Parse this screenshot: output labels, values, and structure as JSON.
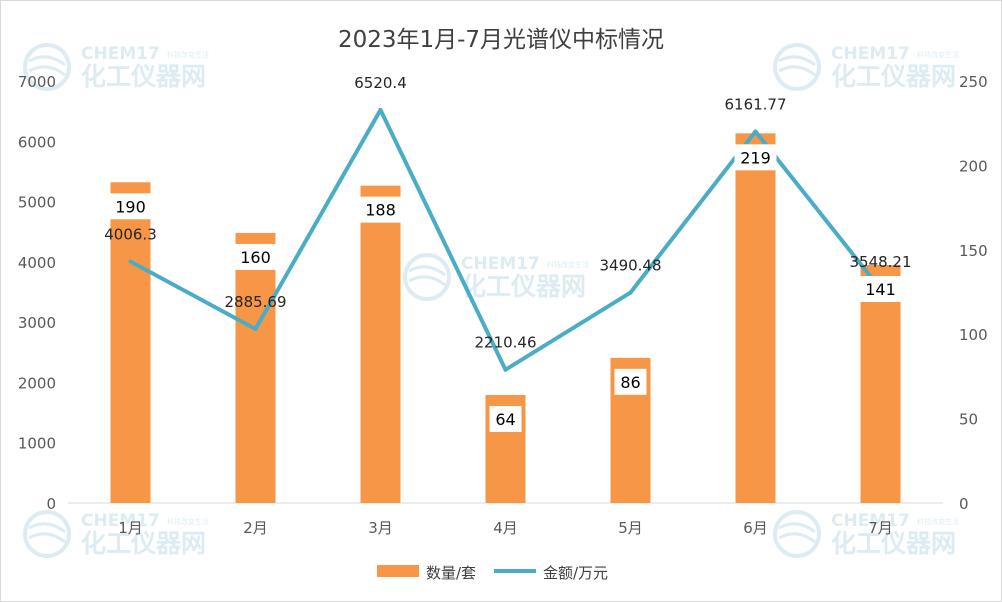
{
  "chart_data": {
    "type": "bar",
    "title": "2023年1月-7月光谱仪中标情况",
    "categories": [
      "1月",
      "2月",
      "3月",
      "4月",
      "5月",
      "6月",
      "7月"
    ],
    "series": [
      {
        "name": "数量/套",
        "type": "bar",
        "axis": "right",
        "color": "#F79646",
        "values": [
          190,
          160,
          188,
          64,
          86,
          219,
          141
        ],
        "data_labels": [
          "190",
          "160",
          "188",
          "64",
          "86",
          "219",
          "141"
        ]
      },
      {
        "name": "金额/万元",
        "type": "line",
        "axis": "left",
        "color": "#4BACC6",
        "values": [
          4006.3,
          2885.69,
          6520.4,
          2210.46,
          3490.48,
          6161.77,
          3548.21
        ],
        "data_labels": [
          "4006.3",
          "2885.69",
          "6520.4",
          "2210.46",
          "3490.48",
          "6161.77",
          "3548.21"
        ]
      }
    ],
    "y_left": {
      "min": 0,
      "max": 7000,
      "ticks": [
        "0",
        "1000",
        "2000",
        "3000",
        "4000",
        "5000",
        "6000",
        "7000"
      ]
    },
    "y_right": {
      "min": 0,
      "max": 250,
      "ticks": [
        "0",
        "50",
        "100",
        "150",
        "200",
        "250"
      ]
    },
    "grid": false,
    "legend": "bottom"
  },
  "watermark": {
    "brand": "CHEM17",
    "tagline": "科技改变生活",
    "name": "化工仪器网"
  }
}
